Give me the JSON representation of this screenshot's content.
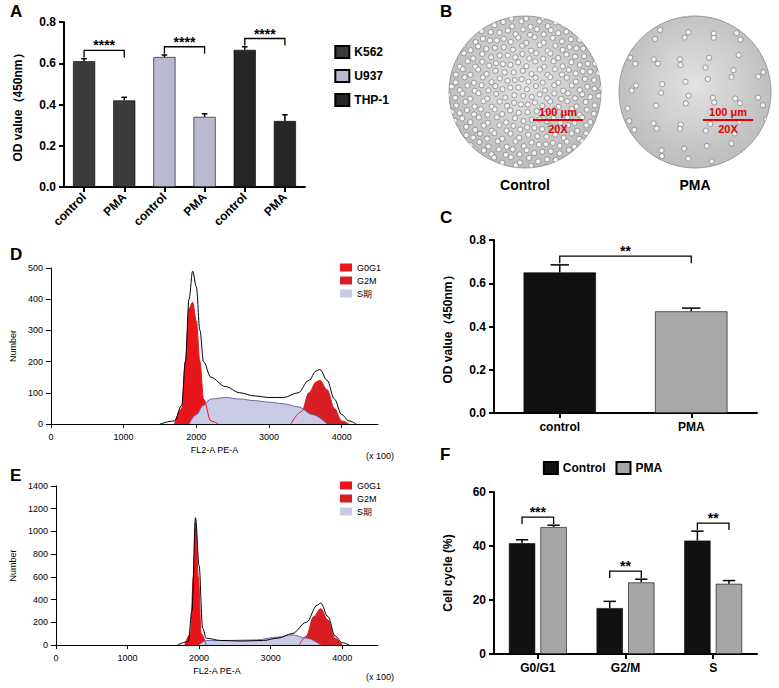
{
  "chart_data": [
    {
      "panel": "A",
      "type": "bar",
      "categories": [
        "control",
        "PMA",
        "control",
        "PMA",
        "control",
        "PMA"
      ],
      "y_label": "OD value（450nm）",
      "ylim": [
        0,
        0.8
      ],
      "yticks": [
        {
          "value": 0,
          "label": "0.0"
        },
        0.2,
        0.4,
        0.6,
        0.8
      ],
      "grid": false,
      "legend": "right",
      "series": [
        {
          "name": "K562",
          "color": "#3b3b3b",
          "values": [
            0.61,
            0.42,
            null,
            null,
            null,
            null
          ],
          "errors": [
            0.012,
            0.015,
            null,
            null,
            null,
            null
          ]
        },
        {
          "name": "U937",
          "color": "#b9b9cf",
          "values": [
            null,
            null,
            0.63,
            0.34,
            null,
            null
          ],
          "errors": [
            null,
            null,
            0.01,
            0.015,
            null,
            null
          ]
        },
        {
          "name": "THP-1",
          "color": "#262626",
          "values": [
            null,
            null,
            null,
            null,
            0.665,
            0.32
          ],
          "errors": [
            null,
            null,
            null,
            null,
            0.015,
            0.03
          ]
        }
      ],
      "comparisons": [
        {
          "pair": [
            0,
            1
          ],
          "label": "****"
        },
        {
          "pair": [
            2,
            3
          ],
          "label": "****"
        },
        {
          "pair": [
            4,
            5
          ],
          "label": "****"
        }
      ]
    },
    {
      "panel": "B",
      "type": "micrograph",
      "images": [
        {
          "caption": "Control",
          "scale_bar": "100 μm",
          "magnification": "20X"
        },
        {
          "caption": "PMA",
          "scale_bar": "100 μm",
          "magnification": "20X"
        }
      ]
    },
    {
      "panel": "C",
      "type": "bar",
      "categories": [
        "control",
        "PMA"
      ],
      "values": [
        0.65,
        0.47
      ],
      "errors": [
        0.035,
        0.015
      ],
      "colors": [
        "#111111",
        "#a8a8a8"
      ],
      "y_label": "OD value（450nm）",
      "ylim": [
        0,
        0.8
      ],
      "yticks": [
        {
          "value": 0,
          "label": "0.0"
        },
        0.2,
        0.4,
        0.6,
        0.8
      ],
      "grid": false,
      "comparisons": [
        {
          "pair": [
            0,
            1
          ],
          "label": "**"
        }
      ]
    },
    {
      "panel": "D",
      "type": "line",
      "x_label": "FL2-A PE-A",
      "x_label_note": "(x 100)",
      "y_label": "Number",
      "xlim": [
        0,
        4500
      ],
      "xticks": [
        0,
        1000,
        2000,
        3000,
        4000
      ],
      "ylim": [
        0,
        500
      ],
      "yticks": [
        0,
        100,
        200,
        300,
        400,
        500
      ],
      "grid": false,
      "legend": "upper right",
      "series": [
        {
          "name": "G0G1",
          "type": "area",
          "color": "#e8161b",
          "x": [
            1700,
            1800,
            1850,
            1900,
            1950,
            2000,
            2050,
            2100,
            2200,
            2300
          ],
          "values": [
            0,
            50,
            200,
            370,
            390,
            330,
            200,
            80,
            10,
            0
          ]
        },
        {
          "name": "G2M",
          "type": "area",
          "color": "#d81e22",
          "x": [
            3300,
            3450,
            3550,
            3650,
            3700,
            3800,
            3900,
            4000,
            4100
          ],
          "values": [
            0,
            40,
            100,
            135,
            140,
            110,
            50,
            10,
            0
          ]
        },
        {
          "name": "S期",
          "type": "area",
          "color": "#6a6aa8",
          "x": [
            1900,
            2000,
            2100,
            2200,
            2400,
            2600,
            2800,
            3000,
            3200,
            3400,
            3600,
            3800
          ],
          "values": [
            0,
            30,
            60,
            80,
            85,
            80,
            75,
            70,
            65,
            55,
            30,
            0
          ]
        },
        {
          "type": "line",
          "color": "#000000",
          "x": [
            1500,
            1700,
            1800,
            1850,
            1900,
            1950,
            2000,
            2050,
            2100,
            2200,
            2400,
            2600,
            2800,
            3000,
            3200,
            3400,
            3550,
            3650,
            3700,
            3800,
            3900,
            4000,
            4100,
            4200
          ],
          "values": [
            0,
            10,
            60,
            200,
            400,
            490,
            440,
            300,
            200,
            150,
            120,
            100,
            90,
            85,
            85,
            100,
            140,
            170,
            175,
            140,
            80,
            30,
            10,
            0
          ]
        }
      ]
    },
    {
      "panel": "E",
      "type": "line",
      "x_label": "FL2-A PE-A",
      "x_label_note": "(x 100)",
      "y_label": "Number",
      "xlim": [
        0,
        4500
      ],
      "xticks": [
        0,
        1000,
        2000,
        3000,
        4000
      ],
      "ylim": [
        0,
        1400
      ],
      "yticks": [
        0,
        200,
        400,
        600,
        800,
        1000,
        1200,
        1400
      ],
      "grid": false,
      "legend": "upper right",
      "series": [
        {
          "name": "G0G1",
          "type": "area",
          "color": "#e8161b",
          "x": [
            1800,
            1880,
            1920,
            1950,
            1990,
            2030,
            2100
          ],
          "values": [
            0,
            100,
            600,
            1080,
            600,
            100,
            0
          ]
        },
        {
          "name": "G2M",
          "type": "area",
          "color": "#d81e22",
          "x": [
            3400,
            3500,
            3600,
            3700,
            3800,
            3900,
            4000
          ],
          "values": [
            0,
            80,
            250,
            320,
            220,
            60,
            0
          ]
        },
        {
          "name": "S期",
          "type": "area",
          "color": "#6a6aa8",
          "x": [
            2000,
            2100,
            2400,
            2800,
            3100,
            3300,
            3500,
            3700
          ],
          "values": [
            0,
            40,
            40,
            45,
            70,
            90,
            60,
            0
          ]
        },
        {
          "type": "line",
          "color": "#000000",
          "x": [
            1700,
            1850,
            1900,
            1950,
            2000,
            2050,
            2100,
            2300,
            2600,
            2900,
            3100,
            3300,
            3500,
            3650,
            3700,
            3800,
            3900,
            4000,
            4100
          ],
          "values": [
            0,
            30,
            300,
            1120,
            700,
            150,
            60,
            40,
            35,
            40,
            60,
            100,
            200,
            350,
            370,
            250,
            80,
            20,
            0
          ]
        }
      ]
    },
    {
      "panel": "F",
      "type": "bar",
      "categories": [
        "G0/G1",
        "G2/M",
        "S"
      ],
      "y_label": "Cell cycle (%)",
      "ylim": [
        0,
        60
      ],
      "yticks": [
        0,
        20,
        40,
        60
      ],
      "grid": false,
      "legend": "top",
      "series": [
        {
          "name": "Control",
          "color": "#111111",
          "values": [
            41,
            17,
            42
          ],
          "errors": [
            1.3,
            2.5,
            3.5
          ]
        },
        {
          "name": "PMA",
          "color": "#a6a6a6",
          "values": [
            47,
            26.5,
            26
          ],
          "errors": [
            0.7,
            1.2,
            1.2
          ]
        }
      ],
      "comparisons": [
        {
          "category": "G0/G1",
          "label": "***"
        },
        {
          "category": "G2/M",
          "label": "**"
        },
        {
          "category": "S",
          "label": "**"
        }
      ]
    }
  ]
}
